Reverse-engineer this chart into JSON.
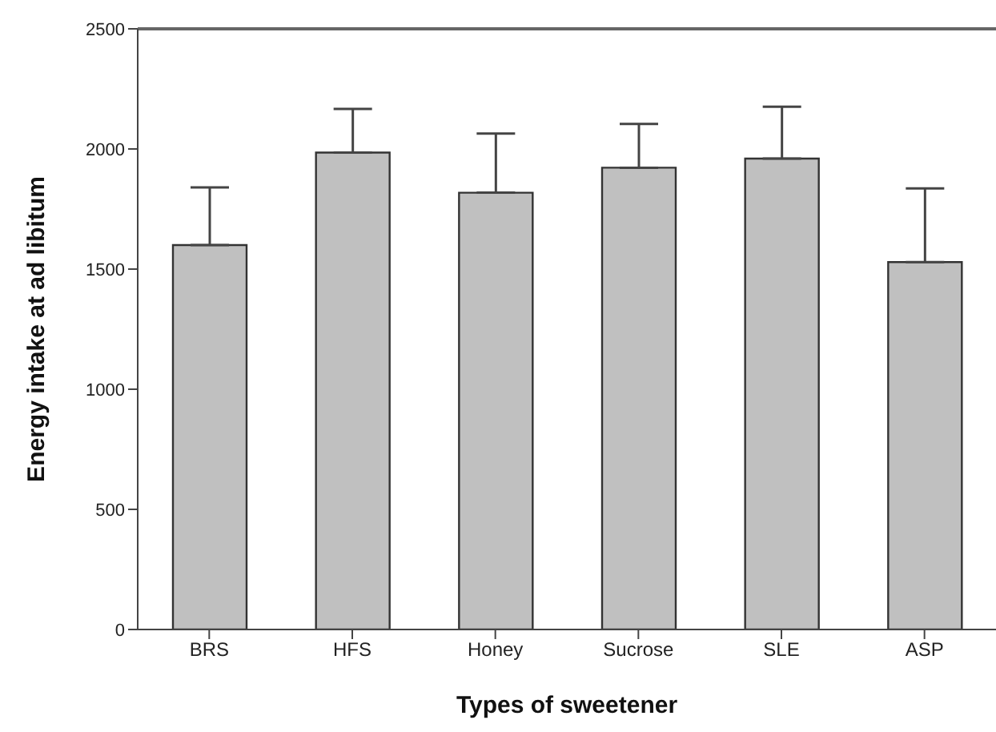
{
  "chart_data": {
    "type": "bar",
    "xlabel": "Types of sweetener",
    "ylabel": "Energy intake at ad libitum",
    "categories": [
      "BRS",
      "HFS",
      "Honey",
      "Sucrose",
      "SLE",
      "ASP"
    ],
    "values": [
      1600,
      1985,
      1818,
      1922,
      1960,
      1529
    ],
    "errors": [
      [
        1600,
        1840
      ],
      [
        1985,
        2167
      ],
      [
        1818,
        2064
      ],
      [
        1922,
        2104
      ],
      [
        1960,
        2176
      ],
      [
        1529,
        1836
      ]
    ],
    "color": "#c0c0c0",
    "ylim": [
      0,
      2500
    ],
    "yticks": [
      0,
      500,
      1000,
      1500,
      2000,
      2500
    ],
    "grid": false,
    "legend": false
  }
}
